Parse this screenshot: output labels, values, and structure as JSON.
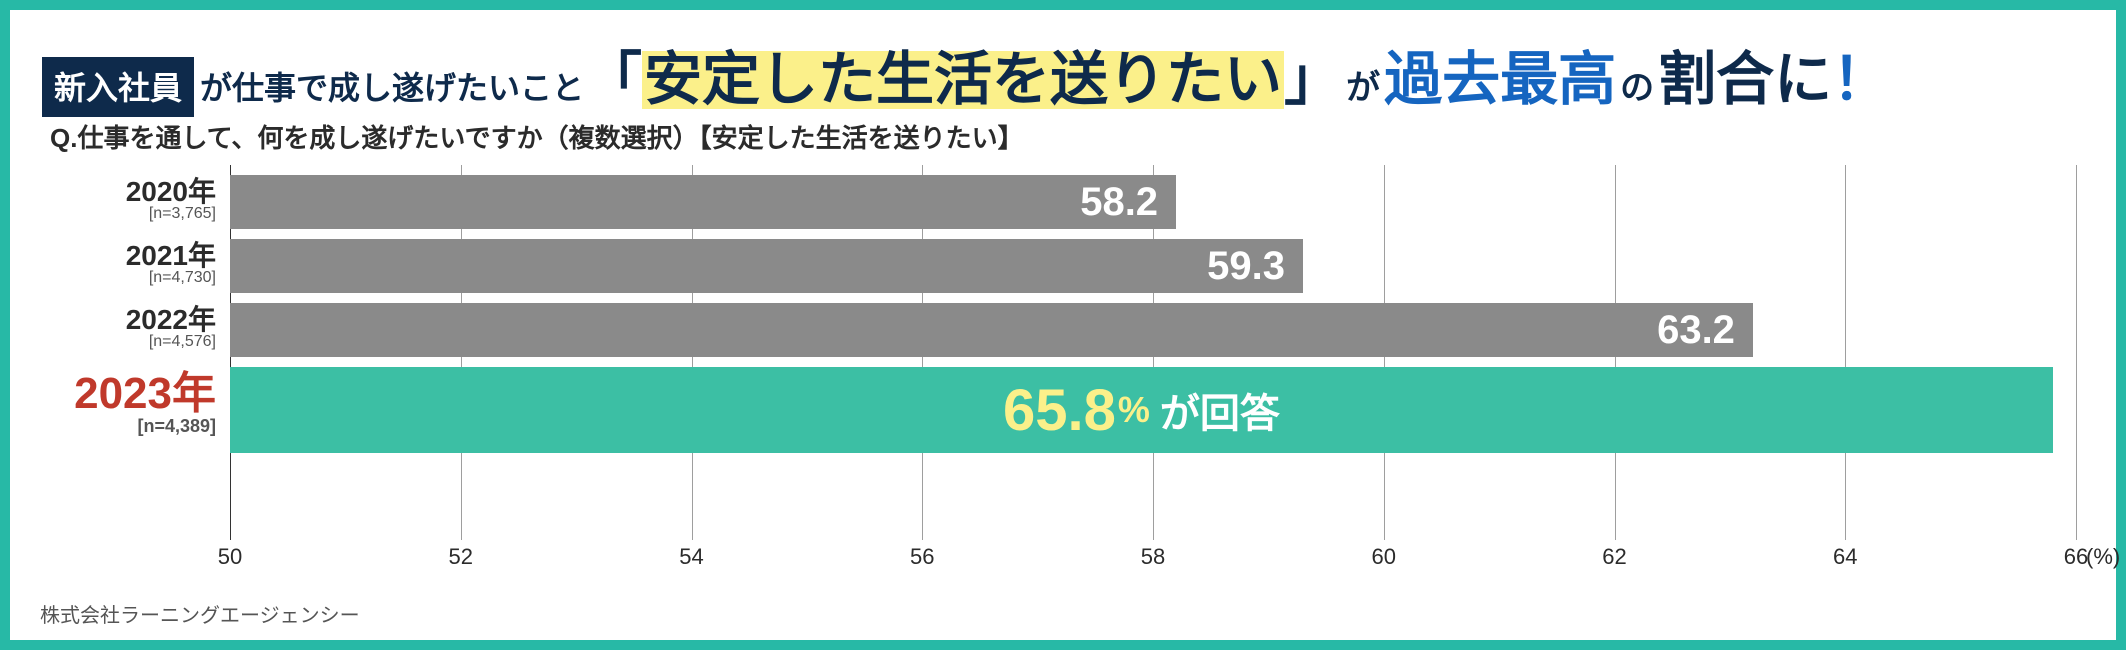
{
  "colors": {
    "frame_border": "#27b9a6",
    "navy": "#0e2a4b",
    "badge_bg": "#0e2a4b",
    "badge_fg": "#ffffff",
    "highlight_bg": "#fbf08a",
    "emph_blue": "#1565c0",
    "text": "#2b2b2b",
    "grid": "#9e9e9e",
    "axis": "#333333",
    "bar_normal": "#8a8a8a",
    "bar_emph": "#3cbfa4",
    "bar_text": "#ffffff",
    "bar_emph_value": "#fbf08a",
    "year_emph": "#c0392b",
    "footer": "#555555",
    "background": "#ffffff"
  },
  "headline": {
    "badge": "新入社員",
    "after_badge": "が仕事で成し遂げたいこと",
    "open_bracket": "「",
    "highlight": "安定した生活を送りたい",
    "close_bracket": "」",
    "ga": "が",
    "emph": "過去最高",
    "no": "の",
    "ratio": "割合に",
    "bang": "！"
  },
  "question": "Q.仕事を通して、何を成し遂げたいですか（複数選択）【安定した生活を送りたい】",
  "chart": {
    "type": "bar-horizontal",
    "xmin": 50,
    "xmax": 66,
    "xtick_step": 2,
    "xticks": [
      50,
      52,
      54,
      56,
      58,
      60,
      62,
      64,
      66
    ],
    "x_unit": "(%)",
    "bar_height_normal": 54,
    "bar_height_emph": 86,
    "row_gap": 10,
    "bars": [
      {
        "year": "2020年",
        "n": "[n=3,765]",
        "value": 58.2,
        "value_label": "58.2",
        "emph": false
      },
      {
        "year": "2021年",
        "n": "[n=4,730]",
        "value": 59.3,
        "value_label": "59.3",
        "emph": false
      },
      {
        "year": "2022年",
        "n": "[n=4,576]",
        "value": 63.2,
        "value_label": "63.2",
        "emph": false
      },
      {
        "year": "2023年",
        "n": "[n=4,389]",
        "value": 65.8,
        "value_label": "65.8",
        "pct_label": "%",
        "suffix": "が回答",
        "emph": true
      }
    ]
  },
  "footer": "株式会社ラーニングエージェンシー"
}
